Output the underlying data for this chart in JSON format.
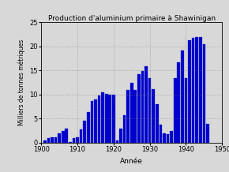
{
  "title": "Production d'aluminium primaire à Shawinigan",
  "xlabel": "Année",
  "ylabel": "Milliers de tonnes métriques",
  "xlim": [
    1900,
    1950
  ],
  "ylim": [
    0,
    25
  ],
  "yticks": [
    0,
    5,
    10,
    15,
    20,
    25
  ],
  "xticks": [
    1900,
    1910,
    1920,
    1930,
    1940,
    1950
  ],
  "bar_color": "#0000cc",
  "bar_edgecolor": "#0000cc",
  "background_color": "#d8d8d8",
  "years": [
    1901,
    1902,
    1903,
    1904,
    1905,
    1906,
    1907,
    1908,
    1909,
    1910,
    1911,
    1912,
    1913,
    1914,
    1915,
    1916,
    1917,
    1918,
    1919,
    1920,
    1921,
    1922,
    1923,
    1924,
    1925,
    1926,
    1927,
    1928,
    1929,
    1930,
    1931,
    1932,
    1933,
    1934,
    1935,
    1936,
    1937,
    1938,
    1939,
    1940,
    1941,
    1942,
    1943,
    1944,
    1945,
    1946
  ],
  "values": [
    0.5,
    1.0,
    1.2,
    1.2,
    2.0,
    2.5,
    3.0,
    0.2,
    1.0,
    1.1,
    2.8,
    4.5,
    6.3,
    8.6,
    9.0,
    9.8,
    10.5,
    10.2,
    10.0,
    10.0,
    0.5,
    3.0,
    5.7,
    11.0,
    12.5,
    11.0,
    14.3,
    14.9,
    15.8,
    13.5,
    11.2,
    8.0,
    3.7,
    2.0,
    1.8,
    2.5,
    13.5,
    16.7,
    19.2,
    13.5,
    21.3,
    21.8,
    22.0,
    22.0,
    20.5,
    4.0
  ]
}
